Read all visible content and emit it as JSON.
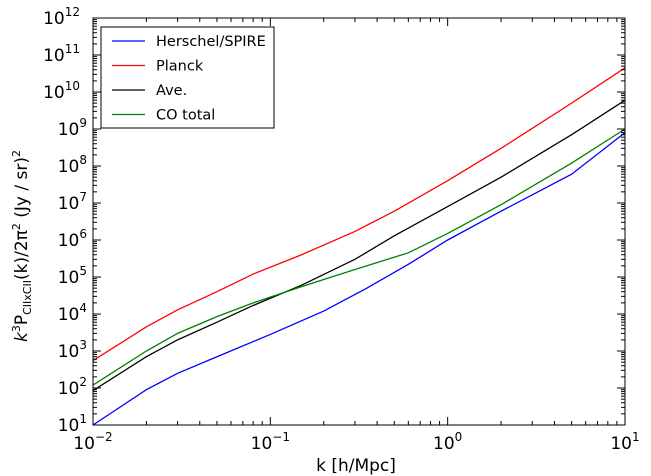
{
  "chart_data": {
    "type": "line",
    "xscale": "log",
    "yscale": "log",
    "xlim": [
      0.01,
      10
    ],
    "ylim": [
      10,
      1000000000000
    ],
    "xlabel": "k [h/Mpc]",
    "ylabel": {
      "prefix": "k",
      "prefix_exp": "3",
      "P": "P",
      "subscript": "CIIxCII",
      "mid": "(k)/2π",
      "mid_exp": "2",
      "suffix": " (Jy / sr)",
      "suffix_exp": "2"
    },
    "x_ticks": [
      {
        "value": 0.01,
        "base": "10",
        "exp": "−2"
      },
      {
        "value": 0.1,
        "base": "10",
        "exp": "−1"
      },
      {
        "value": 1,
        "base": "10",
        "exp": "0"
      },
      {
        "value": 10,
        "base": "10",
        "exp": "1"
      }
    ],
    "y_ticks": [
      {
        "value": 10,
        "base": "10",
        "exp": "1"
      },
      {
        "value": 100,
        "base": "10",
        "exp": "2"
      },
      {
        "value": 1000,
        "base": "10",
        "exp": "3"
      },
      {
        "value": 10000,
        "base": "10",
        "exp": "4"
      },
      {
        "value": 100000,
        "base": "10",
        "exp": "5"
      },
      {
        "value": 1000000,
        "base": "10",
        "exp": "6"
      },
      {
        "value": 10000000,
        "base": "10",
        "exp": "7"
      },
      {
        "value": 100000000,
        "base": "10",
        "exp": "8"
      },
      {
        "value": 1000000000,
        "base": "10",
        "exp": "9"
      },
      {
        "value": 10000000000,
        "base": "10",
        "exp": "10"
      },
      {
        "value": 100000000000,
        "base": "10",
        "exp": "11"
      },
      {
        "value": 1000000000000,
        "base": "10",
        "exp": "12"
      }
    ],
    "legend_position": "top-left",
    "grid": false,
    "series": [
      {
        "name": "Herschel/SPIRE",
        "color": "#0000ff",
        "points": [
          [
            0.01,
            10
          ],
          [
            0.02,
            90
          ],
          [
            0.03,
            250
          ],
          [
            0.05,
            700
          ],
          [
            0.1,
            2800
          ],
          [
            0.2,
            12000
          ],
          [
            0.35,
            50000
          ],
          [
            0.6,
            220000
          ],
          [
            1.0,
            1000000
          ],
          [
            2.0,
            6000000
          ],
          [
            5.0,
            60000000
          ],
          [
            10,
            800000000
          ]
        ]
      },
      {
        "name": "Planck",
        "color": "#ff0000",
        "points": [
          [
            0.01,
            550
          ],
          [
            0.02,
            4500
          ],
          [
            0.03,
            13000
          ],
          [
            0.05,
            40000
          ],
          [
            0.08,
            120000
          ],
          [
            0.15,
            400000
          ],
          [
            0.3,
            1700000
          ],
          [
            0.5,
            6000000
          ],
          [
            1.0,
            40000000
          ],
          [
            2.0,
            300000000
          ],
          [
            5.0,
            5000000000
          ],
          [
            10,
            45000000000
          ]
        ]
      },
      {
        "name": "Ave.",
        "color": "#000000",
        "points": [
          [
            0.01,
            85
          ],
          [
            0.02,
            700
          ],
          [
            0.03,
            2000
          ],
          [
            0.05,
            6000
          ],
          [
            0.08,
            17000
          ],
          [
            0.15,
            60000
          ],
          [
            0.3,
            300000
          ],
          [
            0.5,
            1300000
          ],
          [
            1.0,
            8000000
          ],
          [
            2.0,
            50000000
          ],
          [
            5.0,
            700000000
          ],
          [
            10,
            6000000000
          ]
        ]
      },
      {
        "name": "CO total",
        "color": "#008000",
        "points": [
          [
            0.01,
            120
          ],
          [
            0.02,
            1000
          ],
          [
            0.03,
            3000
          ],
          [
            0.05,
            8500
          ],
          [
            0.08,
            20000
          ],
          [
            0.15,
            55000
          ],
          [
            0.3,
            160000
          ],
          [
            0.6,
            450000
          ],
          [
            1.0,
            1500000
          ],
          [
            2.0,
            9000000
          ],
          [
            5.0,
            120000000
          ],
          [
            10,
            1000000000
          ]
        ]
      }
    ]
  }
}
